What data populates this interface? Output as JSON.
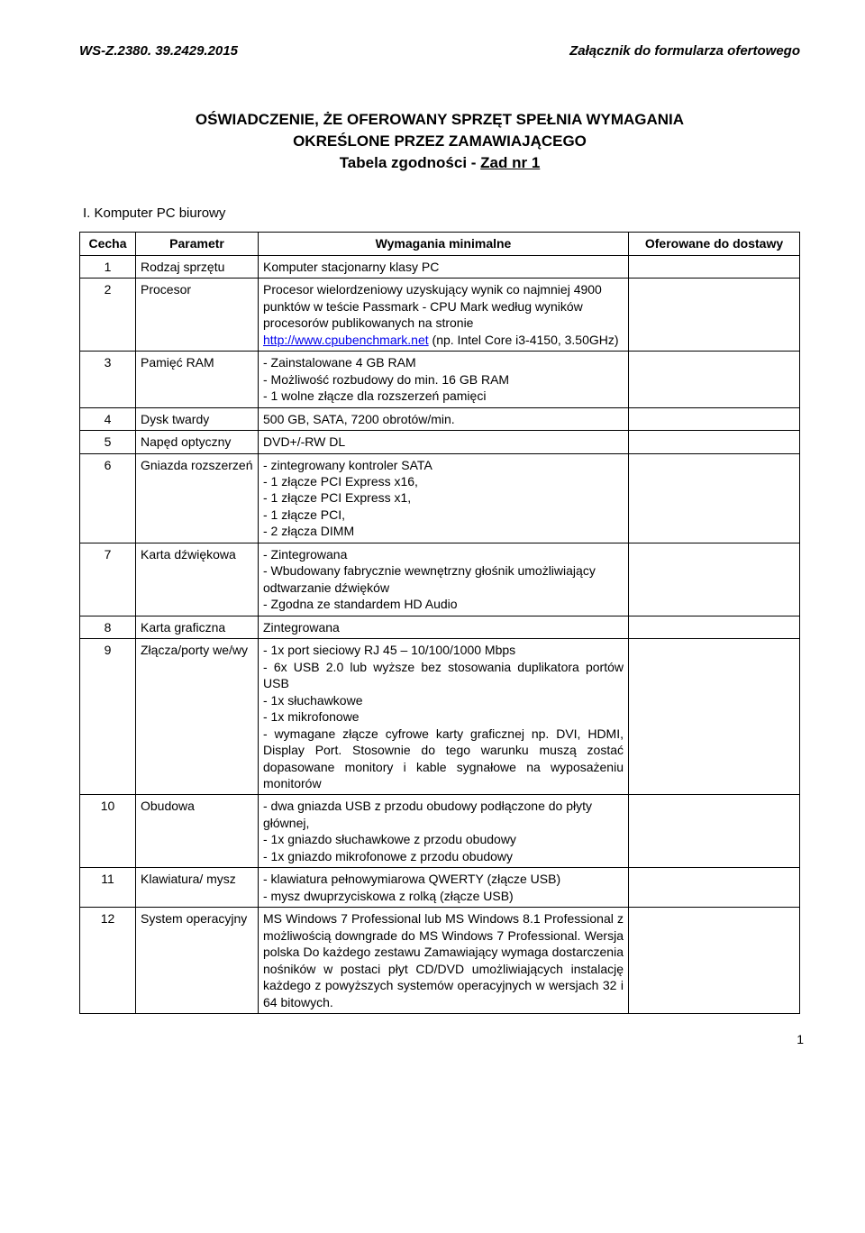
{
  "header": {
    "left": "WS-Z.2380. 39.2429.2015",
    "right": "Załącznik do formularza ofertowego"
  },
  "title": {
    "line1": "OŚWIADCZENIE, ŻE OFEROWANY SPRZĘT SPEŁNIA WYMAGANIA",
    "line2": "OKREŚLONE PRZEZ ZAMAWIAJĄCEGO",
    "line3_prefix": "Tabela zgodności - ",
    "line3_under": "Zad nr 1"
  },
  "section_title": "I.   Komputer PC biurowy",
  "columns": {
    "cecha": "Cecha",
    "parametr": "Parametr",
    "wymagania": "Wymagania minimalne",
    "oferowane": "Oferowane do dostawy"
  },
  "rows": [
    {
      "n": "1",
      "param": "Rodzaj sprzętu",
      "req_html": "Komputer stacjonarny klasy PC"
    },
    {
      "n": "2",
      "param": "Procesor",
      "req_html": "Procesor wielordzeniowy uzyskujący wynik co najmniej 4900 punktów w teście Passmark - CPU Mark według wyników procesorów publikowanych na stronie <a class='bmlink' href='#'>http://www.cpubenchmark.net</a> (np. Intel Core i3-4150, 3.50GHz)"
    },
    {
      "n": "3",
      "param": "Pamięć RAM",
      "req_html": "- Zainstalowane 4 GB RAM<br>- Możliwość rozbudowy do min. 16 GB RAM<br>- 1 wolne złącze dla rozszerzeń pamięci"
    },
    {
      "n": "4",
      "param": "Dysk twardy",
      "req_html": "500 GB, SATA, 7200 obrotów/min."
    },
    {
      "n": "5",
      "param": "Napęd optyczny",
      "req_html": "DVD+/-RW DL"
    },
    {
      "n": "6",
      "param": "Gniazda rozszerzeń",
      "req_html": "- zintegrowany kontroler SATA<br>- 1 złącze PCI Express x16,<br>- 1 złącze PCI Express x1,<br>- 1 złącze PCI,<br>- 2 złącza DIMM"
    },
    {
      "n": "7",
      "param": "Karta dźwiękowa",
      "req_html": "- Zintegrowana<br>- Wbudowany fabrycznie wewnętrzny głośnik umożliwiający odtwarzanie dźwięków<br>- Zgodna ze standardem HD Audio"
    },
    {
      "n": "8",
      "param": "Karta graficzna",
      "req_html": "Zintegrowana"
    },
    {
      "n": "9",
      "param": "Złącza/porty we/wy",
      "req_html": "- 1x port sieciowy RJ 45 &ndash; 10/100/1000 Mbps<br>- 6x USB 2.0 lub wyższe bez stosowania duplikatora portów USB<br>- 1x słuchawkowe<br>- 1x mikrofonowe<br>- wymagane złącze cyfrowe karty graficznej np. DVI, HDMI, Display Port. Stosownie do tego warunku muszą zostać dopasowane monitory i kable sygnałowe na wyposażeniu monitorów"
    },
    {
      "n": "10",
      "param": "Obudowa",
      "req_html": "- dwa gniazda USB z przodu obudowy podłączone do płyty głównej,<br>- 1x gniazdo słuchawkowe z przodu obudowy<br>- 1x gniazdo mikrofonowe z przodu obudowy"
    },
    {
      "n": "11",
      "param": "Klawiatura/ mysz",
      "req_html": "- klawiatura pełnowymiarowa QWERTY (złącze USB)<br>- mysz dwuprzyciskowa z rolką (złącze USB)"
    },
    {
      "n": "12",
      "param": "System operacyjny",
      "req_html": "MS Windows 7 Professional lub MS Windows 8.1 Professional z możliwością downgrade do MS Windows 7 Professional. Wersja polska Do każdego zestawu Zamawiający wymaga dostarczenia nośników w postaci płyt CD/DVD umożliwiających instalację każdego z powyższych systemów operacyjnych w wersjach 32 i 64 bitowych."
    }
  ],
  "page_number": "1",
  "styles": {
    "text_color": "#000000",
    "link_color": "#0000ee",
    "background": "#ffffff",
    "border_color": "#000000",
    "font_family": "Arial, Helvetica, sans-serif"
  }
}
